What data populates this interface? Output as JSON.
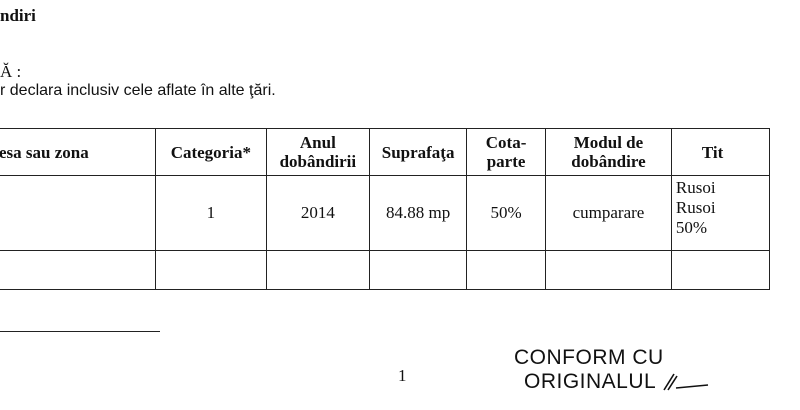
{
  "heading": "ndiri",
  "line2": "Ă :",
  "line3": "r declara inclusiv cele aflate în alte ţări.",
  "table": {
    "headers": [
      "esa sau zona",
      "Categoria*",
      "Anul dobândirii",
      "Suprafaţa",
      "Cota-parte",
      "Modul de dobândire",
      "Tit"
    ],
    "rows": [
      [
        "",
        "1",
        "2014",
        "84.88 mp",
        "50%",
        "cumparare",
        [
          "Rusoi",
          "Rusoi",
          "50%"
        ]
      ],
      [
        "",
        "",
        "",
        "",
        "",
        "",
        ""
      ]
    ]
  },
  "page_number": "1",
  "stamp": {
    "line1": "CONFORM CU",
    "line2": "ORIGINALUL"
  }
}
